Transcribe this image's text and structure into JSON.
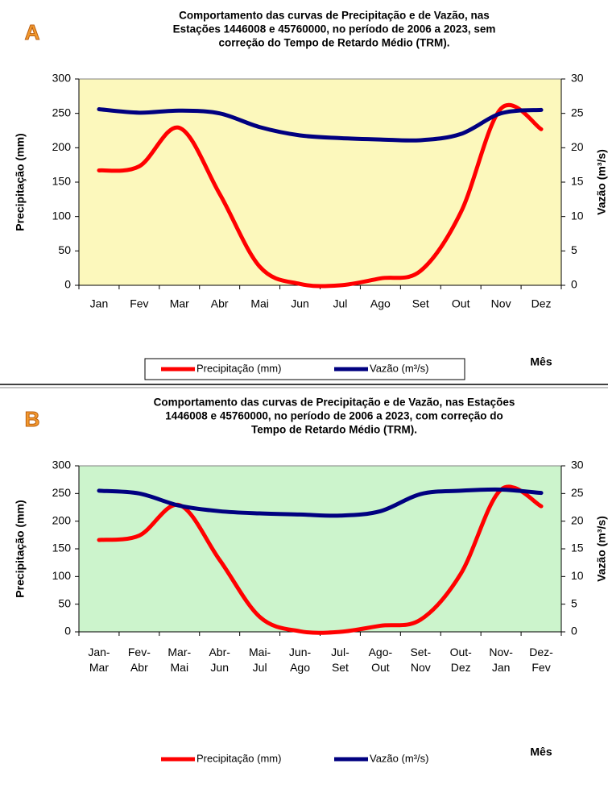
{
  "chart_data": [
    {
      "type": "line",
      "panel": "A",
      "title": [
        "Comportamento das curvas de Precipitação e de Vazão, nas",
        "Estações  1446008  e 45760000,  no período de 2006 a 2023, sem",
        "correção do Tempo de Retardo Médio (TRM)."
      ],
      "categories": [
        "Jan",
        "Fev",
        "Mar",
        "Abr",
        "Mai",
        "Jun",
        "Jul",
        "Ago",
        "Set",
        "Out",
        "Nov",
        "Dez"
      ],
      "series": [
        {
          "name": "Precipitação (mm)",
          "color": "#ff0000",
          "values": [
            167,
            173,
            229,
            133,
            27,
            2,
            0,
            10,
            21,
            106,
            257,
            227
          ]
        },
        {
          "name": "Vazão (m³/s)",
          "color": "#000080",
          "axis": "y2",
          "values": [
            25.6,
            25.1,
            25.4,
            25.0,
            23.0,
            21.8,
            21.4,
            21.2,
            21.1,
            22.0,
            25.0,
            25.5
          ]
        }
      ],
      "ylabel": "Precipitação (mm)",
      "y2label": "Vazão (m³/s)",
      "xlabel": "Mês",
      "ylim": [
        0,
        300
      ],
      "yticks": [
        0,
        50,
        100,
        150,
        200,
        250,
        300
      ],
      "y2lim": [
        0,
        30
      ],
      "y2ticks": [
        0,
        5,
        10,
        15,
        20,
        25,
        30
      ],
      "plot_background": "#fcf8bc",
      "legend_box": true,
      "smooth": true
    },
    {
      "type": "line",
      "panel": "B",
      "title": [
        "Comportamento das curvas de Precipitação e de Vazão, nas Estações",
        "1446008 e 45760000, no período de 2006 a 2023, com correção do",
        "Tempo de Retardo Médio (TRM)."
      ],
      "categories": [
        "Jan-Mar",
        "Fev-Abr",
        "Mar-Mai",
        "Abr-Jun",
        "Mai-Jul",
        "Jun-Ago",
        "Jul-Set",
        "Ago-Out",
        "Set-Nov",
        "Out-Dez",
        "Nov-Jan",
        "Dez-Fev"
      ],
      "series": [
        {
          "name": "Precipitação (mm)",
          "color": "#ff0000",
          "values": [
            166,
            174,
            229,
            130,
            27,
            1,
            0,
            11,
            22,
            105,
            257,
            227
          ]
        },
        {
          "name": "Vazão (m³/s)",
          "color": "#000080",
          "axis": "y2",
          "values": [
            25.5,
            25.0,
            22.8,
            21.8,
            21.4,
            21.2,
            21.0,
            21.8,
            24.9,
            25.5,
            25.7,
            25.1
          ]
        }
      ],
      "ylabel": "Precipitação (mm)",
      "y2label": "Vazão (m³/s)",
      "xlabel": "Mês",
      "ylim": [
        0,
        300
      ],
      "yticks": [
        0,
        50,
        100,
        150,
        200,
        250,
        300
      ],
      "y2lim": [
        0,
        30
      ],
      "y2ticks": [
        0,
        5,
        10,
        15,
        20,
        25,
        30
      ],
      "plot_background": "#ccf4cc",
      "legend_box": false,
      "smooth": true
    }
  ]
}
